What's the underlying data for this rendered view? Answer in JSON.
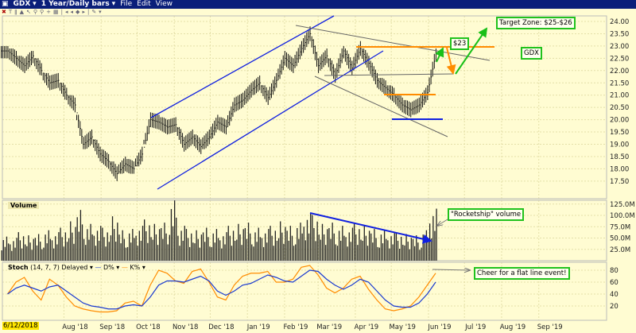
{
  "window": {
    "symbol": "GDX",
    "period": "1 Year/Daily bars",
    "menu": [
      "File",
      "Edit",
      "View"
    ]
  },
  "toolbar": {
    "icons": [
      "close-icon",
      "text-icon",
      "bars-icon",
      "area-icon",
      "cursor-icon",
      "zoom-in-icon",
      "zoom-out-icon",
      "crosshair-icon",
      "chart-icon",
      "scroll-left-icon",
      "step-left-icon",
      "center-icon",
      "step-right-icon",
      "draw-icon"
    ]
  },
  "annotations": {
    "price_target": "$23",
    "target_zone": "Target Zone: $25-$26",
    "symbol_box": "GDX",
    "volume_note": "\"Rocketship\" volume",
    "stoch_note": "Cheer for a flat line event!"
  },
  "colors": {
    "bars": "#111111",
    "channel": "#1020e0",
    "resistance": "#ff8c00",
    "arrows_green": "#18c018",
    "stoch_k": "#ff8c00",
    "stoch_d": "#1a3ad0",
    "background": "#fffcd2"
  },
  "chart_data": [
    {
      "type": "ohlc",
      "pane": "price",
      "title": "",
      "ylim": [
        17.2,
        24.3
      ],
      "y_ticks": [
        "24.00",
        "23.50",
        "23.00",
        "22.50",
        "22.00",
        "21.50",
        "21.00",
        "20.50",
        "20.00",
        "19.50",
        "19.00",
        "18.50",
        "18.00",
        "17.50"
      ],
      "dates": [
        "2018-06-15",
        "2018-06-22",
        "2018-06-29",
        "2018-07-06",
        "2018-07-13",
        "2018-07-20",
        "2018-07-27",
        "2018-08-03",
        "2018-08-10",
        "2018-08-17",
        "2018-08-24",
        "2018-08-31",
        "2018-09-07",
        "2018-09-14",
        "2018-09-21",
        "2018-09-28",
        "2018-10-05",
        "2018-10-12",
        "2018-10-19",
        "2018-10-26",
        "2018-11-02",
        "2018-11-09",
        "2018-11-16",
        "2018-11-23",
        "2018-11-30",
        "2018-12-07",
        "2018-12-14",
        "2018-12-21",
        "2018-12-28",
        "2019-01-04",
        "2019-01-11",
        "2019-01-18",
        "2019-01-25",
        "2019-02-01",
        "2019-02-08",
        "2019-02-15",
        "2019-02-22",
        "2019-03-01",
        "2019-03-08",
        "2019-03-15",
        "2019-03-22",
        "2019-03-29",
        "2019-04-05",
        "2019-04-12",
        "2019-04-19",
        "2019-04-26",
        "2019-05-03",
        "2019-05-10",
        "2019-05-17",
        "2019-05-24",
        "2019-05-31",
        "2019-06-07"
      ],
      "close": [
        22.8,
        22.5,
        22.2,
        22.6,
        22.0,
        21.5,
        21.6,
        21.0,
        20.6,
        19.0,
        19.3,
        18.6,
        18.3,
        17.8,
        18.2,
        18.0,
        18.6,
        20.0,
        19.9,
        19.7,
        19.8,
        19.0,
        19.3,
        18.9,
        19.3,
        19.9,
        19.7,
        20.6,
        20.8,
        21.2,
        21.5,
        20.9,
        21.6,
        22.5,
        22.2,
        22.9,
        23.5,
        22.2,
        22.6,
        21.8,
        22.8,
        22.1,
        22.9,
        22.3,
        21.6,
        21.3,
        21.0,
        20.6,
        20.4,
        20.6,
        21.1,
        22.7
      ],
      "high": [
        23.0,
        22.9,
        22.6,
        22.8,
        22.5,
        21.9,
        21.9,
        21.5,
        21.0,
        20.2,
        19.6,
        19.2,
        18.8,
        18.3,
        18.5,
        18.4,
        19.0,
        20.5,
        20.4,
        20.1,
        20.2,
        19.7,
        19.6,
        19.4,
        19.6,
        20.2,
        20.1,
        20.9,
        21.1,
        21.5,
        21.8,
        21.4,
        21.9,
        22.8,
        22.8,
        23.2,
        23.8,
        23.4,
        22.9,
        22.5,
        23.0,
        22.9,
        23.3,
        22.9,
        22.4,
        21.7,
        21.4,
        21.0,
        20.8,
        20.9,
        21.4,
        22.9
      ],
      "low": [
        22.4,
        22.2,
        21.9,
        22.0,
        21.8,
        21.2,
        21.2,
        20.8,
        20.2,
        18.8,
        18.8,
        18.3,
        17.9,
        17.5,
        17.8,
        17.8,
        18.1,
        19.0,
        19.4,
        19.3,
        19.2,
        18.7,
        18.7,
        18.4,
        18.8,
        19.2,
        19.4,
        19.7,
        20.3,
        20.6,
        21.0,
        20.6,
        20.8,
        21.6,
        21.8,
        22.1,
        22.6,
        21.9,
        22.0,
        21.5,
        21.7,
        21.6,
        22.0,
        22.0,
        21.3,
        20.9,
        20.5,
        20.2,
        20.1,
        20.2,
        20.4,
        20.8
      ]
    },
    {
      "type": "bar",
      "pane": "volume",
      "label": "Volume",
      "ylim": [
        0,
        130
      ],
      "y_ticks": [
        "125.0M",
        "100.0M",
        "75.0M",
        "50.0M",
        "25.0M"
      ],
      "values": [
        38,
        36,
        45,
        40,
        42,
        48,
        45,
        52,
        62,
        80,
        58,
        55,
        52,
        70,
        48,
        50,
        55,
        65,
        58,
        60,
        95,
        55,
        50,
        48,
        52,
        50,
        45,
        55,
        58,
        60,
        52,
        50,
        55,
        62,
        55,
        60,
        75,
        72,
        58,
        60,
        55,
        52,
        58,
        55,
        50,
        48,
        45,
        44,
        42,
        40,
        48,
        82
      ]
    },
    {
      "type": "line",
      "pane": "stoch",
      "label": "Stoch",
      "params": "(14, 7, 7) Delayed",
      "ylim": [
        0,
        100
      ],
      "y_ticks": [
        "80",
        "60",
        "40",
        "20"
      ],
      "series": [
        {
          "name": "D%",
          "values": [
            40,
            50,
            55,
            50,
            45,
            52,
            55,
            45,
            35,
            25,
            20,
            18,
            15,
            15,
            20,
            22,
            20,
            35,
            55,
            62,
            62,
            60,
            65,
            70,
            62,
            45,
            38,
            45,
            55,
            58,
            65,
            72,
            68,
            62,
            60,
            70,
            80,
            78,
            65,
            55,
            48,
            55,
            65,
            60,
            45,
            30,
            20,
            18,
            18,
            25,
            40,
            60
          ]
        },
        {
          "name": "K%",
          "values": [
            40,
            60,
            68,
            45,
            30,
            65,
            55,
            35,
            20,
            15,
            12,
            10,
            10,
            12,
            25,
            28,
            20,
            55,
            80,
            75,
            62,
            58,
            78,
            82,
            60,
            35,
            30,
            55,
            70,
            75,
            75,
            78,
            60,
            60,
            65,
            85,
            88,
            72,
            50,
            42,
            50,
            65,
            70,
            48,
            30,
            15,
            12,
            15,
            20,
            35,
            55,
            75
          ]
        }
      ]
    }
  ],
  "x_axis": {
    "start_label": "6/12/2018",
    "labels": [
      "Aug '18",
      "Sep '18",
      "Oct '18",
      "Nov '18",
      "Dec '18",
      "Jan '19",
      "Feb '19",
      "Mar '19",
      "Apr '19",
      "May '19",
      "Jun '19",
      "Jul '19",
      "Aug '19",
      "Sep '19"
    ],
    "label_dates": [
      "2018-08-01",
      "2018-09-01",
      "2018-10-01",
      "2018-11-01",
      "2018-12-01",
      "2019-01-01",
      "2019-02-01",
      "2019-03-01",
      "2019-04-01",
      "2019-05-01",
      "2019-06-01",
      "2019-07-01",
      "2019-08-01",
      "2019-09-01"
    ]
  }
}
